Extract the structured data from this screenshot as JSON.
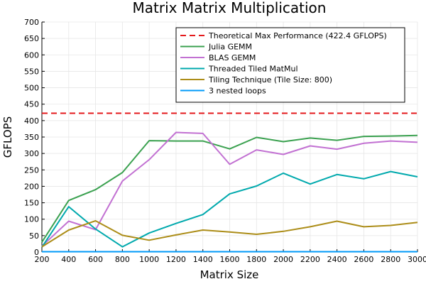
{
  "chart_data": {
    "type": "line",
    "title": "Matrix Matrix Multiplication",
    "xlabel": "Matrix Size",
    "ylabel": "GFLOPS",
    "xlim": [
      200,
      3000
    ],
    "ylim": [
      0,
      700
    ],
    "xticks": [
      200,
      400,
      600,
      800,
      1000,
      1200,
      1400,
      1600,
      1800,
      2000,
      2200,
      2400,
      2600,
      2800,
      3000
    ],
    "yticks": [
      0,
      50,
      100,
      150,
      200,
      250,
      300,
      350,
      400,
      450,
      500,
      550,
      600,
      650,
      700
    ],
    "grid": true,
    "legend_position": "top-right",
    "x": [
      200,
      400,
      600,
      800,
      1000,
      1200,
      1400,
      1600,
      1800,
      2000,
      2200,
      2400,
      2600,
      2800,
      3000
    ],
    "series": [
      {
        "name": "Theoretical Max Performance (422.4 GFLOPS)",
        "color": "#e41a1c",
        "dashed": true,
        "values": [
          422.4,
          422.4,
          422.4,
          422.4,
          422.4,
          422.4,
          422.4,
          422.4,
          422.4,
          422.4,
          422.4,
          422.4,
          422.4,
          422.4,
          422.4
        ]
      },
      {
        "name": "Julia GEMM",
        "color": "#3ba150",
        "dashed": false,
        "values": [
          30,
          157,
          190,
          242,
          339,
          338,
          338,
          314,
          349,
          336,
          347,
          340,
          352,
          353,
          355
        ]
      },
      {
        "name": "BLAS GEMM",
        "color": "#c271d2",
        "dashed": false,
        "values": [
          18,
          94,
          68,
          216,
          281,
          364,
          361,
          267,
          311,
          297,
          323,
          313,
          331,
          338,
          334
        ]
      },
      {
        "name": "Threaded Tiled MatMul",
        "color": "#00a9ad",
        "dashed": false,
        "values": [
          15,
          138,
          70,
          16,
          58,
          87,
          114,
          177,
          201,
          240,
          207,
          236,
          223,
          245,
          229
        ]
      },
      {
        "name": "Tiling Technique  (Tile Size: 800)",
        "color": "#ac8d18",
        "dashed": false,
        "values": [
          16,
          67,
          95,
          51,
          36,
          52,
          67,
          61,
          54,
          63,
          77,
          94,
          77,
          81,
          90
        ]
      },
      {
        "name": "3 nested loops",
        "color": "#009af9",
        "dashed": false,
        "values": [
          1,
          1,
          1,
          1,
          1,
          1,
          1,
          1,
          1,
          1,
          1,
          1,
          1,
          1,
          1
        ]
      }
    ]
  }
}
